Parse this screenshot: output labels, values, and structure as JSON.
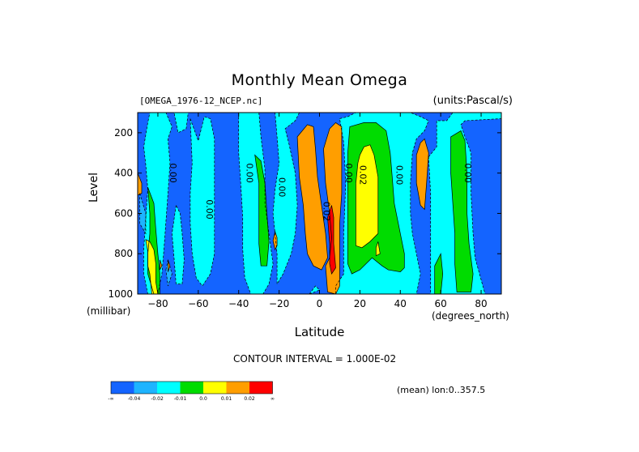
{
  "header": {
    "title": "Monthly Mean Omega",
    "source_file": "[OMEGA_1976-12_NCEP.nc]",
    "units": "(units:Pascal/s)"
  },
  "footer": {
    "contour_interval": "CONTOUR INTERVAL = 1.000E-02",
    "mean_lon": "(mean) lon:0..357.5"
  },
  "chart_data": {
    "type": "heatmap",
    "title": "Monthly Mean Omega",
    "xlabel": "Latitude",
    "x_units": "(degrees_north)",
    "ylabel": "Level",
    "y_units": "(millibar)",
    "xlim": [
      -90,
      90
    ],
    "ylim": [
      1000,
      100
    ],
    "y_direction": "reversed",
    "x_ticks": [
      -80,
      -60,
      -40,
      -20,
      0,
      20,
      40,
      60,
      80
    ],
    "y_ticks": [
      200,
      400,
      600,
      800,
      1000
    ],
    "contour_labels": [
      "0.00",
      "0.00",
      "0.00",
      "0.00",
      "0.02",
      "0.00",
      "0.02",
      "0.00",
      "0.00"
    ],
    "colorbar": {
      "colors": [
        "#1464ff",
        "#1eb4ff",
        "#00ffff",
        "#00dc00",
        "#ffff00",
        "#ff9e00",
        "#ff0000"
      ],
      "labels": [
        "-∞",
        "-0.04",
        "-0.02",
        "-0.01",
        "0.0",
        "0.01",
        "0.02",
        "∞"
      ]
    },
    "regions": [
      {
        "level": 0,
        "points": [
          [
            -90,
            100
          ],
          [
            90,
            100
          ],
          [
            90,
            1000
          ],
          [
            -90,
            1000
          ]
        ]
      },
      {
        "level": 1,
        "points": [
          [
            -89,
            500
          ],
          [
            -86,
            600
          ],
          [
            -86,
            700
          ],
          [
            -89,
            650
          ]
        ]
      },
      {
        "level": 1,
        "points": [
          [
            -76,
            880
          ],
          [
            -75,
            830
          ],
          [
            -73,
            900
          ],
          [
            -75,
            960
          ]
        ]
      },
      {
        "level": 2,
        "points": [
          [
            -87,
            270
          ],
          [
            -86,
            360
          ],
          [
            -85,
            480
          ],
          [
            -86,
            620
          ],
          [
            -87,
            780
          ],
          [
            -87,
            900
          ],
          [
            -85,
            1000
          ],
          [
            -80,
            1000
          ],
          [
            -78,
            900
          ],
          [
            -77,
            780
          ],
          [
            -76,
            640
          ],
          [
            -75,
            500
          ],
          [
            -74,
            350
          ],
          [
            -75,
            230
          ],
          [
            -73,
            170
          ],
          [
            -76,
            100
          ],
          [
            -84,
            100
          ],
          [
            -85,
            150
          ]
        ]
      },
      {
        "level": 2,
        "points": [
          [
            -72,
            100
          ],
          [
            -65,
            100
          ],
          [
            -66,
            180
          ],
          [
            -70,
            200
          ]
        ]
      },
      {
        "level": 2,
        "points": [
          [
            -71,
            560
          ],
          [
            -73,
            700
          ],
          [
            -72,
            820
          ],
          [
            -71,
            950
          ],
          [
            -68,
            950
          ],
          [
            -67,
            830
          ],
          [
            -68,
            700
          ],
          [
            -69,
            600
          ]
        ]
      },
      {
        "level": 2,
        "points": [
          [
            -64,
            130
          ],
          [
            -60,
            240
          ],
          [
            -57,
            120
          ],
          [
            -54,
            130
          ],
          [
            -52,
            230
          ],
          [
            -52,
            500
          ],
          [
            -52,
            800
          ],
          [
            -54,
            900
          ],
          [
            -58,
            960
          ],
          [
            -61,
            920
          ],
          [
            -63,
            800
          ],
          [
            -64,
            650
          ],
          [
            -64,
            500
          ],
          [
            -63,
            350
          ]
        ]
      },
      {
        "level": 2,
        "points": [
          [
            -40,
            100
          ],
          [
            -30,
            100
          ],
          [
            -29,
            220
          ],
          [
            -27,
            380
          ],
          [
            -27,
            550
          ],
          [
            -25,
            700
          ],
          [
            -23,
            850
          ],
          [
            -25,
            950
          ],
          [
            -28,
            1000
          ],
          [
            -34,
            1000
          ],
          [
            -37,
            920
          ],
          [
            -38,
            780
          ],
          [
            -38,
            620
          ],
          [
            -39,
            450
          ],
          [
            -40,
            300
          ]
        ]
      },
      {
        "level": 2,
        "points": [
          [
            -22,
            100
          ],
          [
            -10,
            100
          ],
          [
            -12,
            140
          ],
          [
            -17,
            180
          ],
          [
            -15,
            260
          ],
          [
            -12,
            400
          ],
          [
            -11,
            560
          ],
          [
            -12,
            700
          ],
          [
            -14,
            800
          ],
          [
            -18,
            900
          ],
          [
            -21,
            950
          ],
          [
            -21,
            800
          ],
          [
            -23,
            600
          ],
          [
            -22,
            480
          ],
          [
            -20,
            350
          ],
          [
            -21,
            220
          ]
        ]
      },
      {
        "level": 2,
        "points": [
          [
            -5,
            1000
          ],
          [
            -2,
            960
          ],
          [
            0,
            980
          ]
        ]
      },
      {
        "level": 2,
        "points": [
          [
            10,
            130
          ],
          [
            14,
            120
          ],
          [
            18,
            100
          ],
          [
            45,
            100
          ],
          [
            50,
            120
          ],
          [
            54,
            140
          ],
          [
            52,
            190
          ],
          [
            48,
            230
          ],
          [
            46,
            300
          ],
          [
            45,
            450
          ],
          [
            45,
            600
          ],
          [
            46,
            700
          ],
          [
            48,
            800
          ],
          [
            50,
            900
          ],
          [
            48,
            1000
          ],
          [
            8,
            1000
          ],
          [
            8,
            960
          ],
          [
            12,
            900
          ],
          [
            12,
            700
          ],
          [
            13,
            450
          ],
          [
            12,
            250
          ]
        ]
      },
      {
        "level": 2,
        "points": [
          [
            54,
            320
          ],
          [
            58,
            270
          ],
          [
            58,
            140
          ],
          [
            63,
            140
          ],
          [
            66,
            100
          ],
          [
            90,
            100
          ],
          [
            90,
            130
          ],
          [
            72,
            140
          ],
          [
            70,
            160
          ],
          [
            72,
            220
          ],
          [
            75,
            300
          ],
          [
            75,
            500
          ],
          [
            76,
            700
          ],
          [
            77,
            820
          ],
          [
            80,
            930
          ],
          [
            82,
            1000
          ],
          [
            55,
            1000
          ],
          [
            55,
            900
          ],
          [
            55,
            700
          ],
          [
            55,
            500
          ]
        ]
      },
      {
        "level": 3,
        "points": [
          [
            -85,
            470
          ],
          [
            -84,
            600
          ],
          [
            -84,
            700
          ],
          [
            -85,
            800
          ],
          [
            -85,
            900
          ],
          [
            -82,
            1000
          ],
          [
            -79,
            1000
          ],
          [
            -79,
            900
          ],
          [
            -80,
            800
          ],
          [
            -81,
            680
          ],
          [
            -82,
            550
          ]
        ]
      },
      {
        "level": 3,
        "points": [
          [
            -32,
            310
          ],
          [
            -30,
            450
          ],
          [
            -30,
            600
          ],
          [
            -30,
            750
          ],
          [
            -29,
            860
          ],
          [
            -26,
            860
          ],
          [
            -25,
            740
          ],
          [
            -26,
            600
          ],
          [
            -27,
            450
          ],
          [
            -29,
            340
          ]
        ]
      },
      {
        "level": 3,
        "points": [
          [
            15,
            170
          ],
          [
            22,
            150
          ],
          [
            28,
            150
          ],
          [
            33,
            190
          ],
          [
            35,
            300
          ],
          [
            36,
            420
          ],
          [
            37,
            550
          ],
          [
            40,
            700
          ],
          [
            42,
            800
          ],
          [
            42,
            870
          ],
          [
            40,
            890
          ],
          [
            34,
            880
          ],
          [
            31,
            860
          ],
          [
            26,
            820
          ],
          [
            20,
            880
          ],
          [
            16,
            900
          ],
          [
            14,
            850
          ],
          [
            14,
            700
          ],
          [
            14,
            500
          ],
          [
            14,
            300
          ]
        ]
      },
      {
        "level": 3,
        "points": [
          [
            57,
            860
          ],
          [
            60,
            800
          ],
          [
            61,
            900
          ],
          [
            60,
            1000
          ],
          [
            57,
            1000
          ]
        ]
      },
      {
        "level": 3,
        "points": [
          [
            65,
            220
          ],
          [
            70,
            190
          ],
          [
            72,
            240
          ],
          [
            73,
            400
          ],
          [
            73,
            600
          ],
          [
            74,
            750
          ],
          [
            76,
            900
          ],
          [
            75,
            990
          ],
          [
            68,
            990
          ],
          [
            67,
            850
          ],
          [
            67,
            700
          ],
          [
            66,
            550
          ],
          [
            65,
            400
          ]
        ]
      },
      {
        "level": 4,
        "points": [
          [
            -86,
            730
          ],
          [
            -85,
            790
          ],
          [
            -85,
            860
          ],
          [
            -84,
            900
          ],
          [
            -83,
            1000
          ],
          [
            -80,
            1000
          ],
          [
            -81,
            940
          ],
          [
            -81,
            850
          ],
          [
            -82,
            780
          ],
          [
            -84,
            740
          ]
        ]
      },
      {
        "level": 4,
        "points": [
          [
            20,
            310
          ],
          [
            22,
            270
          ],
          [
            25,
            260
          ],
          [
            27,
            310
          ],
          [
            29,
            420
          ],
          [
            29,
            550
          ],
          [
            29,
            700
          ],
          [
            25,
            740
          ],
          [
            21,
            770
          ],
          [
            18,
            760
          ],
          [
            18,
            620
          ],
          [
            18,
            450
          ],
          [
            19,
            350
          ]
        ]
      },
      {
        "level": 4,
        "points": [
          [
            28,
            770
          ],
          [
            29,
            740
          ],
          [
            30,
            800
          ],
          [
            28,
            810
          ]
        ]
      },
      {
        "level": 5,
        "points": [
          [
            -79,
            830
          ],
          [
            -78,
            860
          ],
          [
            -79,
            880
          ]
        ]
      },
      {
        "level": 5,
        "points": [
          [
            -22,
            690
          ],
          [
            -21,
            720
          ],
          [
            -21,
            760
          ],
          [
            -22,
            780
          ],
          [
            -23,
            735
          ]
        ]
      },
      {
        "level": 5,
        "points": [
          [
            -11,
            220
          ],
          [
            -6,
            160
          ],
          [
            -3,
            170
          ],
          [
            -2,
            280
          ],
          [
            -1,
            420
          ],
          [
            1,
            560
          ],
          [
            3,
            700
          ],
          [
            4,
            820
          ],
          [
            1,
            880
          ],
          [
            -3,
            860
          ],
          [
            -6,
            800
          ],
          [
            -7,
            700
          ],
          [
            -8,
            560
          ],
          [
            -10,
            420
          ]
        ]
      },
      {
        "level": 5,
        "points": [
          [
            2,
            280
          ],
          [
            5,
            180
          ],
          [
            8,
            150
          ],
          [
            11,
            170
          ],
          [
            11,
            300
          ],
          [
            11,
            500
          ],
          [
            10,
            650
          ],
          [
            10,
            800
          ],
          [
            10,
            960
          ],
          [
            8,
            1000
          ],
          [
            4,
            990
          ],
          [
            3,
            860
          ],
          [
            5,
            820
          ],
          [
            6,
            720
          ],
          [
            5,
            600
          ],
          [
            3,
            450
          ]
        ]
      },
      {
        "level": 5,
        "points": [
          [
            -90,
            400
          ],
          [
            -88,
            450
          ],
          [
            -88,
            500
          ],
          [
            -90,
            510
          ]
        ]
      },
      {
        "level": 5,
        "points": [
          [
            -75,
            830
          ],
          [
            -74,
            860
          ],
          [
            -75,
            890
          ]
        ]
      },
      {
        "level": 5,
        "points": [
          [
            48,
            310
          ],
          [
            50,
            250
          ],
          [
            52,
            230
          ],
          [
            54,
            300
          ],
          [
            53,
            450
          ],
          [
            52,
            580
          ],
          [
            50,
            560
          ],
          [
            48,
            450
          ]
        ]
      },
      {
        "level": 6,
        "points": [
          [
            4,
            620
          ],
          [
            6,
            560
          ],
          [
            7,
            620
          ],
          [
            7,
            750
          ],
          [
            8,
            870
          ],
          [
            6,
            900
          ],
          [
            5,
            850
          ],
          [
            5,
            750
          ]
        ]
      }
    ]
  }
}
